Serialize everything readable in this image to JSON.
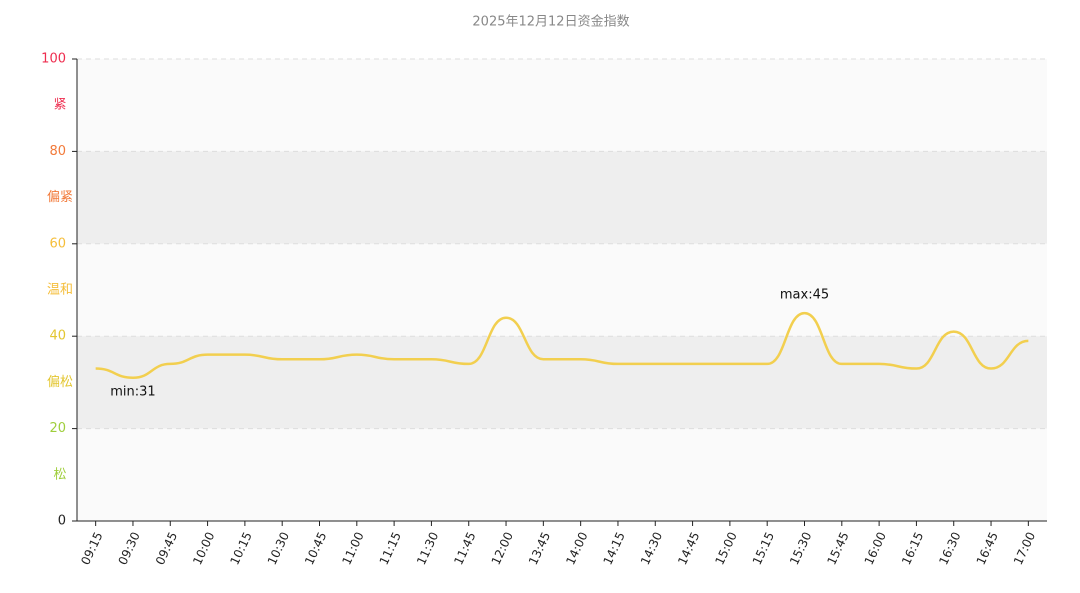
{
  "chart_data": {
    "type": "line",
    "title": "2025年12月12日资金指数",
    "categories": [
      "09:15",
      "09:30",
      "09:45",
      "10:00",
      "10:15",
      "10:30",
      "10:45",
      "11:00",
      "11:15",
      "11:30",
      "11:45",
      "12:00",
      "13:45",
      "14:00",
      "14:15",
      "14:30",
      "14:45",
      "15:00",
      "15:15",
      "15:30",
      "15:45",
      "16:00",
      "16:15",
      "16:30",
      "16:45",
      "17:00"
    ],
    "series": [
      {
        "color": "#f2cf4f",
        "values": [
          33,
          31,
          34,
          36,
          36,
          35,
          35,
          36,
          35,
          35,
          34,
          44,
          35,
          35,
          34,
          34,
          34,
          34,
          34,
          45,
          34,
          34,
          33,
          41,
          33,
          39
        ],
        "value_labels": [
          null,
          "min:31",
          null,
          null,
          null,
          null,
          null,
          null,
          null,
          null,
          null,
          null,
          null,
          null,
          null,
          null,
          null,
          null,
          null,
          "max:45",
          null,
          null,
          null,
          null,
          null,
          null
        ]
      }
    ],
    "ylim": [
      0,
      100
    ],
    "yticks": [
      0,
      20,
      40,
      60,
      80,
      100
    ],
    "grid": true,
    "bands": [
      {
        "from": 80,
        "to": 100,
        "label": "紧",
        "color": "#ee2d4f",
        "fill": "#fafafa"
      },
      {
        "from": 60,
        "to": 80,
        "label": "偏紧",
        "color": "#f27a3a",
        "fill": "#eeeeee"
      },
      {
        "from": 40,
        "to": 60,
        "label": "温和",
        "color": "#f5be3a",
        "fill": "#fafafa"
      },
      {
        "from": 20,
        "to": 40,
        "label": "偏松",
        "color": "#e3c630",
        "fill": "#eeeeee"
      },
      {
        "from": 0,
        "to": 20,
        "label": "松",
        "color": "#9fce3c",
        "fill": "#fafafa"
      }
    ]
  }
}
